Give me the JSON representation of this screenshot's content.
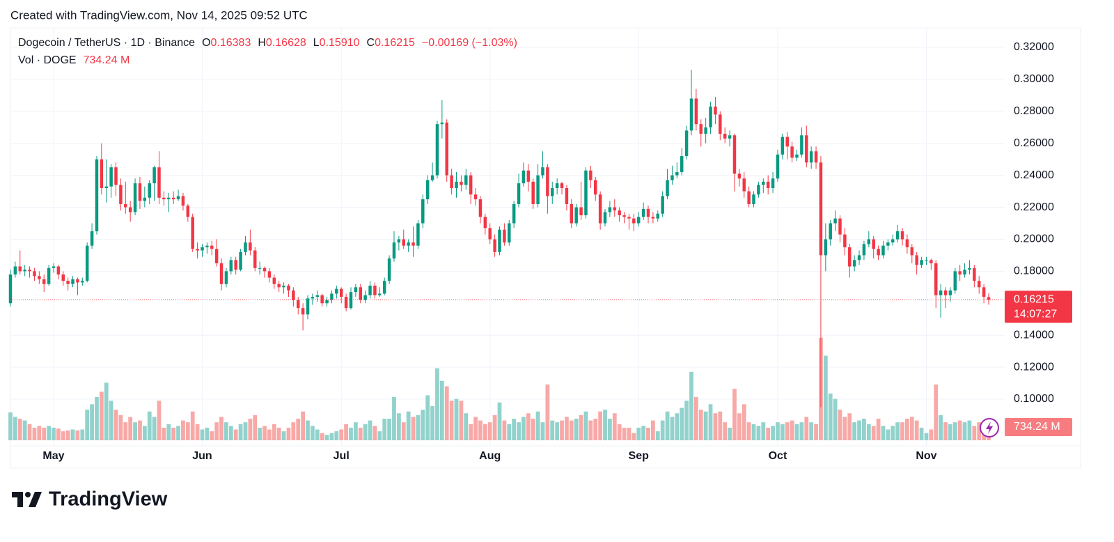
{
  "watermark": "Created with TradingView.com, Nov 14, 2025 09:52 UTC",
  "logo": "TradingView",
  "chart_data": {
    "type": "candlestick",
    "title": "Dogecoin / TetherUS · 1D · Binance",
    "legend": {
      "open_label": "O",
      "open": "0.16383",
      "high_label": "H",
      "high": "0.16628",
      "low_label": "L",
      "low": "0.15910",
      "close_label": "C",
      "close": "0.16215",
      "change": "−0.00169 (−1.03%)"
    },
    "volume_title": "Vol · DOGE",
    "volume_value": "734.24 M",
    "last_price_label": "0.16215",
    "countdown": "14:07:27",
    "volume_price_label": "734.24 M",
    "up_color": "#089981",
    "down_color": "#f23645",
    "up_volume_color": "#92d2cc",
    "down_volume_color": "#f7a9a7",
    "grid": true,
    "ylim": [
      0.0743,
      0.3322
    ],
    "yticks": [
      {
        "value": 0.32,
        "label": "0.32000"
      },
      {
        "value": 0.3,
        "label": "0.30000"
      },
      {
        "value": 0.28,
        "label": "0.28000"
      },
      {
        "value": 0.26,
        "label": "0.26000"
      },
      {
        "value": 0.24,
        "label": "0.24000"
      },
      {
        "value": 0.22,
        "label": "0.22000"
      },
      {
        "value": 0.2,
        "label": "0.20000"
      },
      {
        "value": 0.18,
        "label": "0.18000"
      },
      {
        "value": 0.14,
        "label": "0.14000"
      },
      {
        "value": 0.12,
        "label": "0.12000"
      },
      {
        "value": 0.1,
        "label": "0.10000"
      }
    ],
    "y2lim": [
      0,
      22910
    ],
    "categories": [
      null,
      null,
      null,
      null,
      null,
      null,
      null,
      null,
      null,
      "May",
      null,
      null,
      null,
      null,
      null,
      null,
      null,
      null,
      null,
      null,
      null,
      null,
      null,
      null,
      null,
      null,
      null,
      null,
      null,
      null,
      null,
      null,
      null,
      null,
      null,
      null,
      null,
      null,
      null,
      null,
      "Jun",
      null,
      null,
      null,
      null,
      null,
      null,
      null,
      null,
      null,
      null,
      null,
      null,
      null,
      null,
      null,
      null,
      null,
      null,
      null,
      null,
      null,
      null,
      null,
      null,
      null,
      null,
      null,
      null,
      "Jul",
      null,
      null,
      null,
      null,
      null,
      null,
      null,
      null,
      null,
      null,
      null,
      null,
      null,
      null,
      null,
      null,
      null,
      null,
      null,
      null,
      null,
      null,
      null,
      null,
      null,
      null,
      null,
      null,
      null,
      null,
      "Aug",
      null,
      null,
      null,
      null,
      null,
      null,
      null,
      null,
      null,
      null,
      null,
      null,
      null,
      null,
      null,
      null,
      null,
      null,
      null,
      null,
      null,
      null,
      null,
      null,
      null,
      null,
      null,
      null,
      null,
      null,
      "Sep",
      null,
      null,
      null,
      null,
      null,
      null,
      null,
      null,
      null,
      null,
      null,
      null,
      null,
      null,
      null,
      null,
      null,
      null,
      null,
      null,
      null,
      null,
      null,
      null,
      null,
      null,
      null,
      null,
      "Oct",
      null,
      null,
      null,
      null,
      null,
      null,
      null,
      null,
      null,
      null,
      null,
      null,
      null,
      null,
      null,
      null,
      null,
      null,
      null,
      null,
      null,
      null,
      null,
      null,
      null,
      null,
      null,
      null,
      null,
      null,
      "Nov",
      null,
      null,
      null,
      null,
      null,
      null,
      null,
      null,
      null,
      null,
      null,
      null,
      null
    ],
    "open": [
      0.16,
      0.178,
      0.183,
      0.18,
      0.181,
      0.18,
      0.177,
      0.175,
      0.172,
      0.182,
      0.183,
      0.178,
      0.174,
      0.172,
      0.175,
      0.173,
      0.174,
      0.196,
      0.205,
      0.25,
      0.232,
      0.233,
      0.245,
      0.234,
      0.222,
      0.22,
      0.217,
      0.235,
      0.224,
      0.226,
      0.235,
      0.245,
      0.226,
      0.225,
      0.226,
      0.225,
      0.227,
      0.221,
      0.214,
      0.194,
      0.193,
      0.195,
      0.196,
      0.194,
      0.185,
      0.172,
      0.18,
      0.187,
      0.181,
      0.192,
      0.198,
      0.193,
      0.182,
      0.182,
      0.18,
      0.176,
      0.172,
      0.17,
      0.171,
      0.168,
      0.162,
      0.157,
      0.153,
      0.163,
      0.164,
      0.165,
      0.16,
      0.162,
      0.166,
      0.169,
      0.164,
      0.157,
      0.167,
      0.17,
      0.162,
      0.165,
      0.171,
      0.165,
      0.166,
      0.174,
      0.188,
      0.198,
      0.2,
      0.196,
      0.198,
      0.196,
      0.21,
      0.225,
      0.237,
      0.24,
      0.272,
      0.273,
      0.24,
      0.232,
      0.236,
      0.234,
      0.24,
      0.228,
      0.225,
      0.214,
      0.207,
      0.2,
      0.192,
      0.206,
      0.198,
      0.21,
      0.222,
      0.235,
      0.243,
      0.236,
      0.222,
      0.24,
      0.245,
      0.227,
      0.232,
      0.235,
      0.232,
      0.222,
      0.21,
      0.22,
      0.215,
      0.243,
      0.237,
      0.228,
      0.21,
      0.217,
      0.22,
      0.218,
      0.215,
      0.214,
      0.213,
      0.21,
      0.214,
      0.219,
      0.214,
      0.213,
      0.216,
      0.227,
      0.237,
      0.24,
      0.242,
      0.252,
      0.268,
      0.288,
      0.272,
      0.266,
      0.27,
      0.283,
      0.278,
      0.266,
      0.263,
      0.265,
      0.241,
      0.238,
      0.23,
      0.222,
      0.228,
      0.234,
      0.236,
      0.232,
      0.238,
      0.253,
      0.264,
      0.258,
      0.251,
      0.253,
      0.265,
      0.248,
      0.255,
      0.248,
      0.19,
      0.2,
      0.21,
      0.213,
      0.203,
      0.195,
      0.183,
      0.187,
      0.19,
      0.197,
      0.2,
      0.194,
      0.19,
      0.196,
      0.198,
      0.2,
      0.205,
      0.2,
      0.195,
      0.19,
      0.184,
      0.187,
      0.187,
      0.185,
      0.165,
      0.168,
      0.165,
      0.168,
      0.18,
      0.178,
      0.181,
      0.182,
      0.174,
      0.17,
      0.16383
    ],
    "high": [
      0.181,
      0.186,
      0.193,
      0.184,
      0.183,
      0.182,
      0.18,
      0.178,
      0.184,
      0.185,
      0.184,
      0.18,
      0.176,
      0.177,
      0.176,
      0.176,
      0.198,
      0.21,
      0.252,
      0.26,
      0.25,
      0.247,
      0.248,
      0.238,
      0.236,
      0.224,
      0.238,
      0.239,
      0.233,
      0.237,
      0.246,
      0.255,
      0.23,
      0.229,
      0.23,
      0.231,
      0.229,
      0.222,
      0.216,
      0.198,
      0.197,
      0.198,
      0.199,
      0.2,
      0.188,
      0.182,
      0.189,
      0.189,
      0.194,
      0.202,
      0.206,
      0.195,
      0.186,
      0.183,
      0.182,
      0.178,
      0.174,
      0.173,
      0.172,
      0.17,
      0.164,
      0.16,
      0.165,
      0.166,
      0.168,
      0.166,
      0.164,
      0.168,
      0.171,
      0.17,
      0.166,
      0.17,
      0.172,
      0.172,
      0.168,
      0.174,
      0.173,
      0.17,
      0.176,
      0.19,
      0.205,
      0.202,
      0.206,
      0.2,
      0.208,
      0.212,
      0.228,
      0.24,
      0.248,
      0.274,
      0.287,
      0.275,
      0.244,
      0.242,
      0.24,
      0.244,
      0.242,
      0.232,
      0.227,
      0.216,
      0.21,
      0.203,
      0.208,
      0.21,
      0.212,
      0.224,
      0.241,
      0.248,
      0.247,
      0.238,
      0.247,
      0.255,
      0.247,
      0.236,
      0.238,
      0.236,
      0.234,
      0.225,
      0.222,
      0.236,
      0.245,
      0.246,
      0.239,
      0.23,
      0.219,
      0.224,
      0.225,
      0.22,
      0.217,
      0.216,
      0.216,
      0.217,
      0.223,
      0.221,
      0.217,
      0.218,
      0.23,
      0.244,
      0.246,
      0.248,
      0.257,
      0.271,
      0.306,
      0.294,
      0.275,
      0.276,
      0.286,
      0.289,
      0.28,
      0.27,
      0.268,
      0.266,
      0.244,
      0.242,
      0.233,
      0.23,
      0.236,
      0.238,
      0.24,
      0.242,
      0.256,
      0.266,
      0.267,
      0.261,
      0.256,
      0.27,
      0.271,
      0.258,
      0.258,
      0.252,
      0.21,
      0.212,
      0.218,
      0.215,
      0.207,
      0.197,
      0.19,
      0.193,
      0.199,
      0.205,
      0.202,
      0.196,
      0.199,
      0.2,
      0.203,
      0.209,
      0.207,
      0.203,
      0.197,
      0.192,
      0.189,
      0.189,
      0.188,
      0.187,
      0.172,
      0.17,
      0.17,
      0.182,
      0.184,
      0.185,
      0.187,
      0.184,
      0.177,
      0.172,
      0.16628
    ],
    "low": [
      0.158,
      0.176,
      0.178,
      0.177,
      0.176,
      0.174,
      0.172,
      0.167,
      0.171,
      0.179,
      0.175,
      0.171,
      0.168,
      0.17,
      0.165,
      0.171,
      0.173,
      0.194,
      0.203,
      0.228,
      0.223,
      0.226,
      0.227,
      0.218,
      0.216,
      0.211,
      0.215,
      0.219,
      0.22,
      0.222,
      0.224,
      0.222,
      0.221,
      0.217,
      0.222,
      0.224,
      0.218,
      0.211,
      0.192,
      0.188,
      0.189,
      0.191,
      0.19,
      0.183,
      0.168,
      0.17,
      0.178,
      0.178,
      0.18,
      0.19,
      0.19,
      0.18,
      0.178,
      0.176,
      0.173,
      0.169,
      0.167,
      0.166,
      0.164,
      0.158,
      0.153,
      0.143,
      0.15,
      0.159,
      0.161,
      0.158,
      0.158,
      0.16,
      0.163,
      0.16,
      0.155,
      0.156,
      0.164,
      0.16,
      0.16,
      0.163,
      0.163,
      0.164,
      0.165,
      0.172,
      0.186,
      0.193,
      0.194,
      0.192,
      0.189,
      0.194,
      0.207,
      0.222,
      0.236,
      0.238,
      0.263,
      0.236,
      0.228,
      0.226,
      0.23,
      0.231,
      0.222,
      0.221,
      0.21,
      0.203,
      0.197,
      0.189,
      0.19,
      0.196,
      0.196,
      0.207,
      0.22,
      0.233,
      0.23,
      0.219,
      0.22,
      0.238,
      0.216,
      0.222,
      0.228,
      0.228,
      0.218,
      0.207,
      0.208,
      0.212,
      0.213,
      0.232,
      0.224,
      0.206,
      0.208,
      0.214,
      0.214,
      0.211,
      0.21,
      0.206,
      0.205,
      0.208,
      0.212,
      0.21,
      0.21,
      0.211,
      0.214,
      0.225,
      0.234,
      0.238,
      0.24,
      0.25,
      0.265,
      0.268,
      0.258,
      0.26,
      0.266,
      0.272,
      0.262,
      0.26,
      0.258,
      0.23,
      0.233,
      0.226,
      0.22,
      0.22,
      0.226,
      0.229,
      0.228,
      0.229,
      0.236,
      0.25,
      0.25,
      0.248,
      0.249,
      0.251,
      0.245,
      0.244,
      0.244,
      0.095,
      0.18,
      0.196,
      0.205,
      0.198,
      0.19,
      0.176,
      0.18,
      0.184,
      0.187,
      0.195,
      0.188,
      0.187,
      0.188,
      0.193,
      0.196,
      0.198,
      0.196,
      0.191,
      0.185,
      0.178,
      0.182,
      0.184,
      0.181,
      0.157,
      0.151,
      0.157,
      0.161,
      0.166,
      0.174,
      0.176,
      0.178,
      0.17,
      0.166,
      0.16,
      0.1591
    ],
    "close": [
      0.178,
      0.183,
      0.18,
      0.181,
      0.18,
      0.177,
      0.175,
      0.172,
      0.182,
      0.183,
      0.178,
      0.174,
      0.172,
      0.175,
      0.173,
      0.174,
      0.196,
      0.205,
      0.25,
      0.232,
      0.233,
      0.245,
      0.234,
      0.222,
      0.22,
      0.217,
      0.235,
      0.224,
      0.226,
      0.235,
      0.245,
      0.226,
      0.225,
      0.226,
      0.225,
      0.227,
      0.221,
      0.214,
      0.194,
      0.193,
      0.195,
      0.196,
      0.194,
      0.185,
      0.172,
      0.18,
      0.187,
      0.181,
      0.192,
      0.198,
      0.193,
      0.182,
      0.182,
      0.18,
      0.176,
      0.172,
      0.17,
      0.171,
      0.168,
      0.162,
      0.157,
      0.153,
      0.163,
      0.164,
      0.165,
      0.16,
      0.162,
      0.166,
      0.169,
      0.164,
      0.157,
      0.167,
      0.17,
      0.162,
      0.165,
      0.171,
      0.165,
      0.166,
      0.174,
      0.188,
      0.198,
      0.2,
      0.196,
      0.198,
      0.196,
      0.21,
      0.225,
      0.237,
      0.24,
      0.272,
      0.273,
      0.24,
      0.232,
      0.236,
      0.234,
      0.24,
      0.228,
      0.225,
      0.214,
      0.207,
      0.2,
      0.192,
      0.206,
      0.198,
      0.21,
      0.222,
      0.235,
      0.243,
      0.236,
      0.222,
      0.24,
      0.245,
      0.227,
      0.232,
      0.235,
      0.232,
      0.222,
      0.21,
      0.22,
      0.215,
      0.243,
      0.237,
      0.228,
      0.21,
      0.217,
      0.22,
      0.218,
      0.215,
      0.214,
      0.213,
      0.21,
      0.214,
      0.219,
      0.214,
      0.213,
      0.216,
      0.227,
      0.237,
      0.24,
      0.242,
      0.252,
      0.268,
      0.288,
      0.272,
      0.266,
      0.27,
      0.283,
      0.278,
      0.266,
      0.263,
      0.265,
      0.241,
      0.238,
      0.23,
      0.222,
      0.228,
      0.234,
      0.236,
      0.232,
      0.238,
      0.253,
      0.264,
      0.258,
      0.251,
      0.253,
      0.265,
      0.248,
      0.255,
      0.248,
      0.19,
      0.2,
      0.21,
      0.213,
      0.203,
      0.195,
      0.183,
      0.187,
      0.19,
      0.197,
      0.2,
      0.194,
      0.19,
      0.196,
      0.198,
      0.2,
      0.205,
      0.2,
      0.195,
      0.19,
      0.184,
      0.187,
      0.187,
      0.185,
      0.165,
      0.168,
      0.165,
      0.168,
      0.18,
      0.178,
      0.181,
      0.182,
      0.174,
      0.17,
      0.164,
      0.16215
    ],
    "volume": [
      1550,
      1300,
      1200,
      1100,
      900,
      700,
      800,
      700,
      800,
      700,
      650,
      500,
      550,
      600,
      550,
      600,
      1700,
      2000,
      2400,
      2700,
      3200,
      2200,
      1700,
      1400,
      1000,
      1300,
      1000,
      1100,
      800,
      1600,
      1300,
      2200,
      700,
      900,
      700,
      800,
      1100,
      1000,
      1600,
      900,
      600,
      700,
      500,
      1000,
      1300,
      1000,
      800,
      600,
      900,
      1000,
      1200,
      1400,
      700,
      800,
      600,
      900,
      700,
      500,
      700,
      1000,
      1200,
      1600,
      1100,
      800,
      600,
      400,
      300,
      400,
      500,
      600,
      900,
      700,
      1000,
      700,
      900,
      1100,
      800,
      500,
      1200,
      1200,
      2400,
      1500,
      1000,
      1600,
      1300,
      1400,
      1700,
      2500,
      1900,
      4000,
      3300,
      3000,
      2200,
      2300,
      2200,
      1500,
      900,
      1300,
      1100,
      900,
      1000,
      1400,
      2100,
      1100,
      900,
      1200,
      1000,
      1300,
      1500,
      1200,
      1600,
      1000,
      3100,
      1100,
      1000,
      1100,
      1300,
      1100,
      1200,
      1400,
      1600,
      1100,
      1200,
      1600,
      1700,
      1200,
      1500,
      900,
      700,
      700,
      400,
      700,
      800,
      700,
      1100,
      500,
      1100,
      1600,
      1300,
      1500,
      1800,
      2200,
      3800,
      2400,
      1700,
      1600,
      2000,
      1500,
      1600,
      1000,
      700,
      2860,
      1500,
      2000,
      1000,
      900,
      800,
      1000,
      700,
      800,
      1000,
      900,
      1000,
      1100,
      900,
      1000,
      1300,
      1000,
      900,
      5700,
      4700,
      2600,
      2300,
      1700,
      1300,
      1500,
      1000,
      1100,
      1200,
      900,
      800,
      1200,
      800,
      600,
      800,
      1000,
      1000,
      1200,
      1300,
      1100,
      700,
      400,
      600,
      3100,
      1400,
      1000,
      900,
      1000,
      1100,
      1000,
      1100,
      800,
      1000,
      600,
      734.24
    ]
  }
}
